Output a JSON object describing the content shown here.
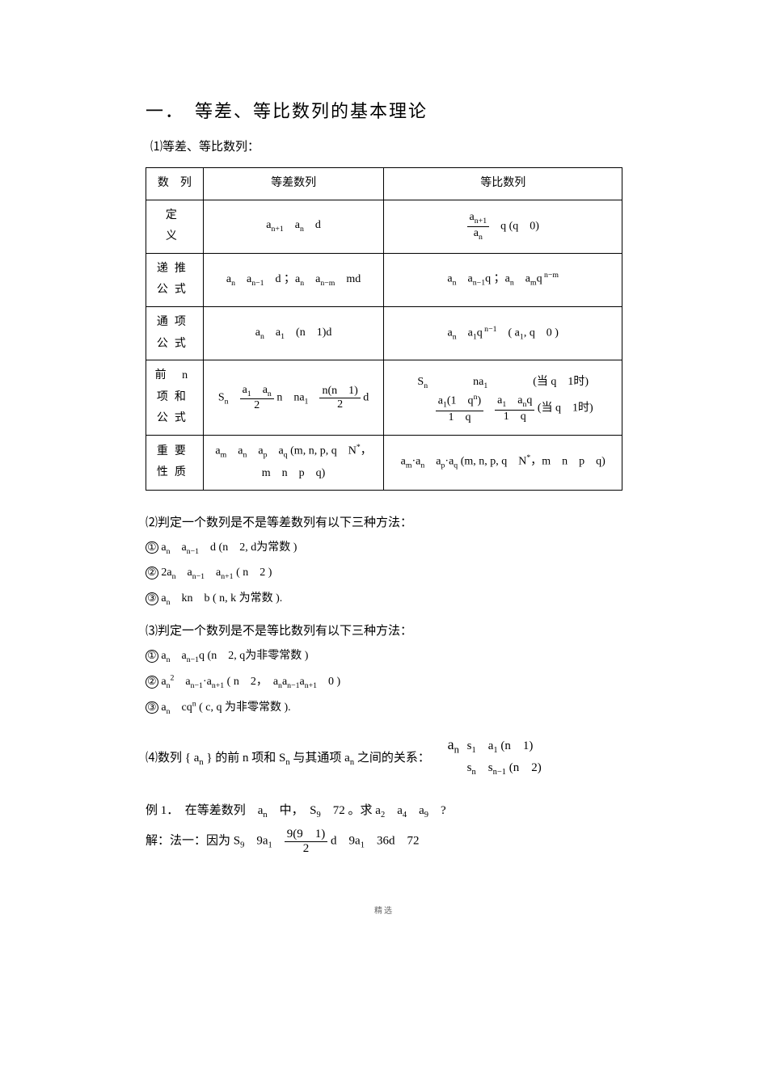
{
  "title": "一．　等差、等比数列的基本理论",
  "sec1": "⑴等差、等比数列：",
  "table": {
    "head": {
      "c1": "数　列",
      "c2": "等差数列",
      "c3": "等比数列"
    },
    "rows": [
      {
        "label": "定　义",
        "arith": "a<sub>n+1</sub>　a<sub>n</sub>　d",
        "geo": "<span class='frac'><span class='num'>a<sub>n+1</sub></span><span class='den'>a<sub>n</sub></span></span>　q (q　0)"
      },
      {
        "label": "递推公式",
        "arith": "a<sub>n</sub>　a<sub>n−1</sub>　d ；a<sub>n</sub>　a<sub>n−m</sub>　md",
        "geo": "a<sub>n</sub>　a<sub>n−1</sub>q ；a<sub>n</sub>　a<sub>m</sub>q<sup> n−m</sup>"
      },
      {
        "label": "通项公式",
        "arith": "a<sub>n</sub>　a<sub>1</sub>　(n　1)d",
        "geo": "a<sub>n</sub>　a<sub>1</sub>q<sup> n−1</sup>　( a<sub>1</sub>, q　0 )"
      },
      {
        "label": "前 n 项和公式",
        "arith": "S<sub>n</sub>　<span class='frac'><span class='num'>a<sub>1</sub>　a<sub>n</sub></span><span class='den'>2</span></span> n　na<sub>1</sub>　<span class='frac'><span class='num'>n(n　1)</span><span class='den'>2</span></span> d",
        "geo": "S<sub>n</sub>　　　　na<sub>1</sub>　　　　(当 q　1时)<br>　　<span class='frac'><span class='num'>a<sub>1</sub>(1　q<sup>n</sup>)</span><span class='den'>1　q</span></span>　<span class='frac'><span class='num'>a<sub>1</sub>　a<sub>n</sub>q</span><span class='den'>1　q</span></span> (当 q　1时)"
      },
      {
        "label": "重要性质",
        "arith": "a<sub>m</sub>　a<sub>n</sub>　a<sub>p</sub>　a<sub>q</sub> (m, n, p, q　N<sup>*</sup>，<br>m　n　p　q)",
        "geo": "a<sub>m</sub>·a<sub>n</sub>　a<sub>p</sub>·a<sub>q</sub> (m, n, p, q　N<sup>*</sup>，m　n　p　q)"
      }
    ]
  },
  "sec2": "⑵判定一个数列是不是等差数列有以下三种方法：",
  "arith_tests": [
    "a<sub>n</sub>　a<sub>n−1</sub>　d (n　2, d为常数 )",
    "2a<sub>n</sub>　a<sub>n−1</sub>　a<sub>n+1</sub> ( n　2 )",
    "a<sub>n</sub>　kn　b ( n, k 为常数 )."
  ],
  "sec3": "⑶判定一个数列是不是等比数列有以下三种方法：",
  "geo_tests": [
    "a<sub>n</sub>　a<sub>n−1</sub>q (n　2, q为非零常数  )",
    "a<sub>n</sub><sup>2</sup>　a<sub>n−1</sub>·a<sub>n+1</sub> ( n　2，　a<sub>n</sub>a<sub>n−1</sub>a<sub>n+1</sub>　0 )",
    "a<sub>n</sub>　cq<sup>n</sup> ( c, q 为非零常数 )."
  ],
  "sec4_text": "⑷数列 { a<sub>n</sub> } 的前 n 项和 S<sub>n</sub> 与其通项 a<sub>n</sub> 之间的关系：",
  "sec4_an": "a<sub>n</sub>",
  "sec4_case1": "s<sub>1</sub>　a<sub>1</sub> (n　1)",
  "sec4_case2": "s<sub>n</sub>　s<sub>n−1</sub> (n　2)",
  "example": "例 1．　在等差数列　a<sub>n</sub>　中，　S<sub>9</sub>　72 。求 a<sub>2</sub>　a<sub>4</sub>　a<sub>9</sub>　?",
  "solution": "解：法一：因为 S<sub>9</sub>　9a<sub>1</sub>　<span class='frac'><span class='num'>9(9　1)</span><span class='den'>2</span></span> d　9a<sub>1</sub>　36d　72",
  "footer": "精选"
}
